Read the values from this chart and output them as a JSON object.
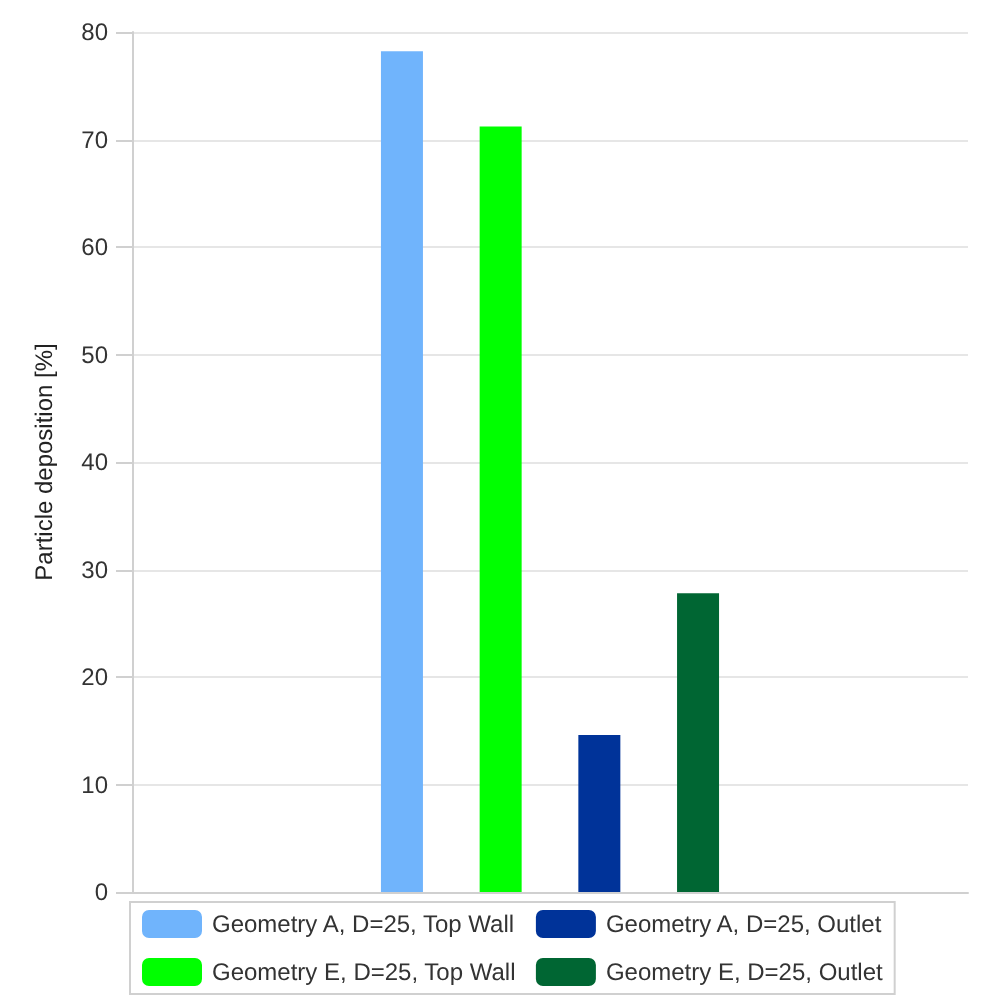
{
  "chart_data": {
    "type": "bar",
    "ylabel": "Particle deposition [%]",
    "categories": [
      null
    ],
    "series": [
      {
        "name": "Geometry A, D=25, Top Wall",
        "color": "#70b4fc",
        "values": [
          78.2
        ]
      },
      {
        "name": "Geometry E, D=25, Top Wall",
        "color": "#00ff00",
        "values": [
          71.2
        ]
      },
      {
        "name": "Geometry A, D=25, Outlet",
        "color": "#003399",
        "values": [
          14.6
        ]
      },
      {
        "name": "Geometry E, D=25, Outlet",
        "color": "#006633",
        "values": [
          27.8
        ]
      }
    ],
    "ylim": [
      0,
      80
    ],
    "yticks": [
      0,
      10,
      20,
      30,
      40,
      50,
      60,
      70,
      80
    ],
    "grid": "y",
    "legend": "bottom"
  }
}
